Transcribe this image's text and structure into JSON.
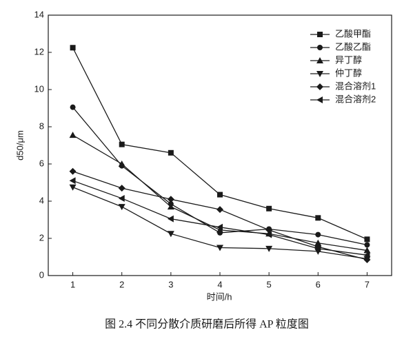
{
  "chart_data": {
    "type": "line",
    "caption": "图 2.4 不同分散介质研磨后所得 AP 粒度图",
    "xlabel": "时间/h",
    "ylabel": "d50/μm",
    "x": [
      1,
      2,
      3,
      4,
      5,
      6,
      7
    ],
    "xlim": [
      0.5,
      7.5
    ],
    "xticks": [
      1,
      2,
      3,
      4,
      5,
      6,
      7
    ],
    "ylim": [
      0,
      14
    ],
    "yticks": [
      0,
      2,
      4,
      6,
      8,
      10,
      12,
      14
    ],
    "legend": "upper right",
    "series": [
      {
        "name": "乙酸甲酯",
        "color": "#1a1a1a",
        "marker": "square",
        "values": [
          12.25,
          7.05,
          6.6,
          4.35,
          3.6,
          3.1,
          1.95
        ]
      },
      {
        "name": "乙酸乙酯",
        "color": "#1a1a1a",
        "marker": "circle",
        "values": [
          9.05,
          5.9,
          3.85,
          2.3,
          2.5,
          2.2,
          1.65
        ]
      },
      {
        "name": "异丁醇",
        "color": "#1a1a1a",
        "marker": "triangle-up",
        "values": [
          7.55,
          6.0,
          3.7,
          2.45,
          2.25,
          1.75,
          1.35
        ]
      },
      {
        "name": "仲丁醇",
        "color": "#1a1a1a",
        "marker": "triangle-down",
        "values": [
          4.75,
          3.7,
          2.25,
          1.5,
          1.45,
          1.3,
          0.9
        ]
      },
      {
        "name": "混合溶剂1",
        "color": "#1a1a1a",
        "marker": "diamond",
        "values": [
          5.6,
          4.7,
          4.1,
          3.55,
          2.45,
          1.55,
          0.85
        ]
      },
      {
        "name": "混合溶剂2",
        "color": "#1a1a1a",
        "marker": "triangle-left",
        "values": [
          5.1,
          4.15,
          3.05,
          2.6,
          2.2,
          1.45,
          1.1
        ]
      }
    ]
  }
}
